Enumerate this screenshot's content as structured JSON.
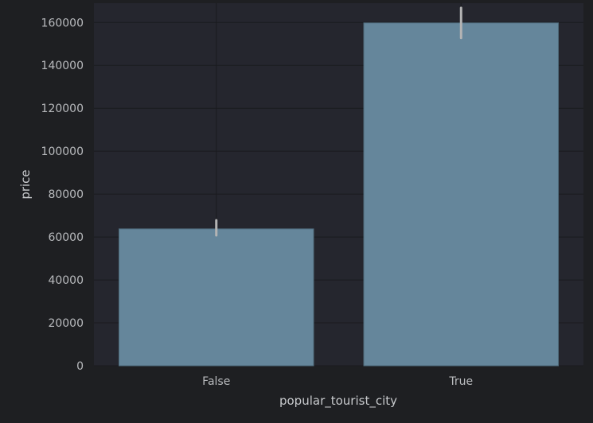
{
  "chart_data": {
    "type": "bar",
    "title": "",
    "xlabel": "popular_tourist_city",
    "ylabel": "price",
    "categories": [
      "False",
      "True"
    ],
    "values": [
      63800,
      159800
    ],
    "error_bars": [
      {
        "low": 60800,
        "high": 67800
      },
      {
        "low": 152800,
        "high": 166800
      }
    ],
    "ylim": [
      0,
      169000
    ],
    "yticks": [
      0,
      20000,
      40000,
      60000,
      80000,
      100000,
      120000,
      140000,
      160000
    ],
    "grid": true,
    "colors": {
      "figure_background": "#1e1f22",
      "plot_background": "#25262e",
      "grid": "#1a1b1f",
      "bar": "#65869b",
      "bar_edge": "#4f6b7c",
      "error_bar": "#b4b4b4"
    }
  }
}
